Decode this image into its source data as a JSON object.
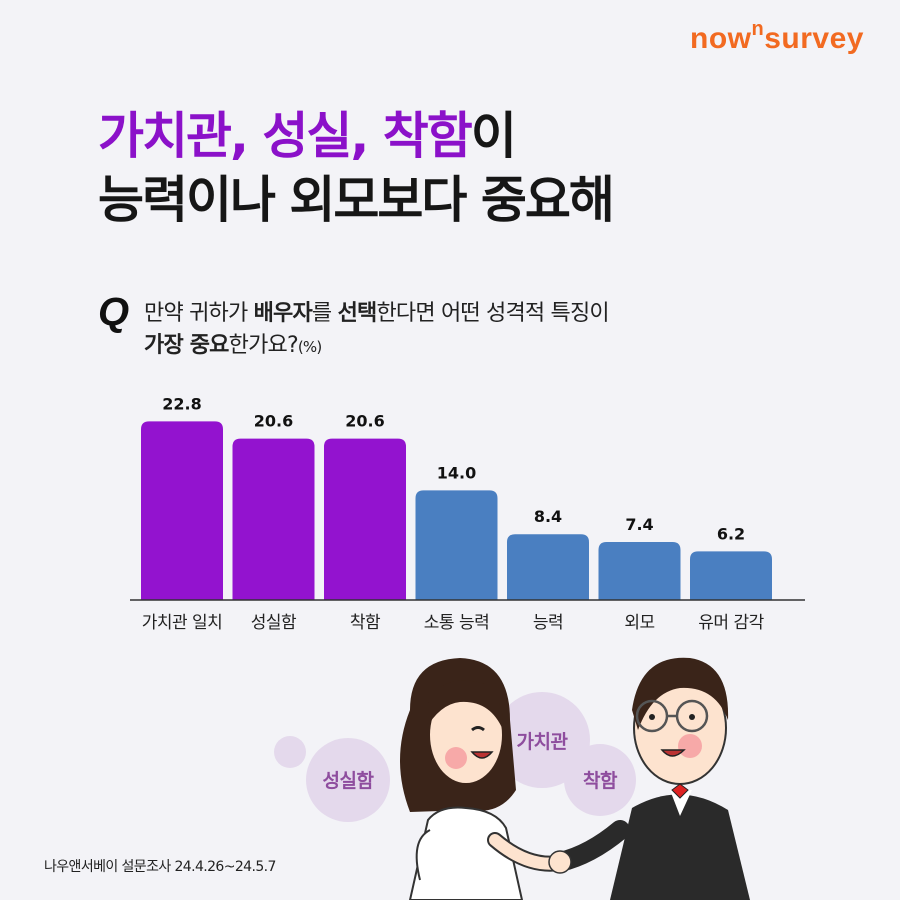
{
  "brand": {
    "prefix": "now",
    "sup": "n",
    "suffix": "survey",
    "color": "#f26a21"
  },
  "headline": {
    "line1_highlight": "가치관, 성실, 착함",
    "line1_rest": "이",
    "line2": "능력이나 외모보다 중요해",
    "highlight_color": "#8b11c9"
  },
  "question": {
    "mark": "Q",
    "line1_pre": "만약 귀하가 ",
    "line1_bold1": "배우자",
    "line1_mid": "를 ",
    "line1_bold2": "선택",
    "line1_post": "한다면 어떤 성격적 특징이",
    "line2_bold": "가장 중요",
    "line2_post": "한가요?",
    "unit": "(%)"
  },
  "chart_data": {
    "type": "bar",
    "categories": [
      "가치관 일치",
      "성실함",
      "착함",
      "소통 능력",
      "능력",
      "외모",
      "유머 감각"
    ],
    "values": [
      22.8,
      20.6,
      20.6,
      14.0,
      8.4,
      7.4,
      6.2
    ],
    "value_labels": [
      "22.8",
      "20.6",
      "20.6",
      "14.0",
      "8.4",
      "7.4",
      "6.2"
    ],
    "unit": "%",
    "ylim": [
      0,
      24
    ],
    "grid": false,
    "colors": {
      "highlight": "#9313cf",
      "default": "#4a7fc1",
      "highlighted_categories": [
        "가치관 일치",
        "성실함",
        "착함"
      ]
    }
  },
  "bubbles": [
    "성실함",
    "가치관",
    "착함"
  ],
  "source": "나우앤서베이 설문조사 24.4.26~24.5.7"
}
